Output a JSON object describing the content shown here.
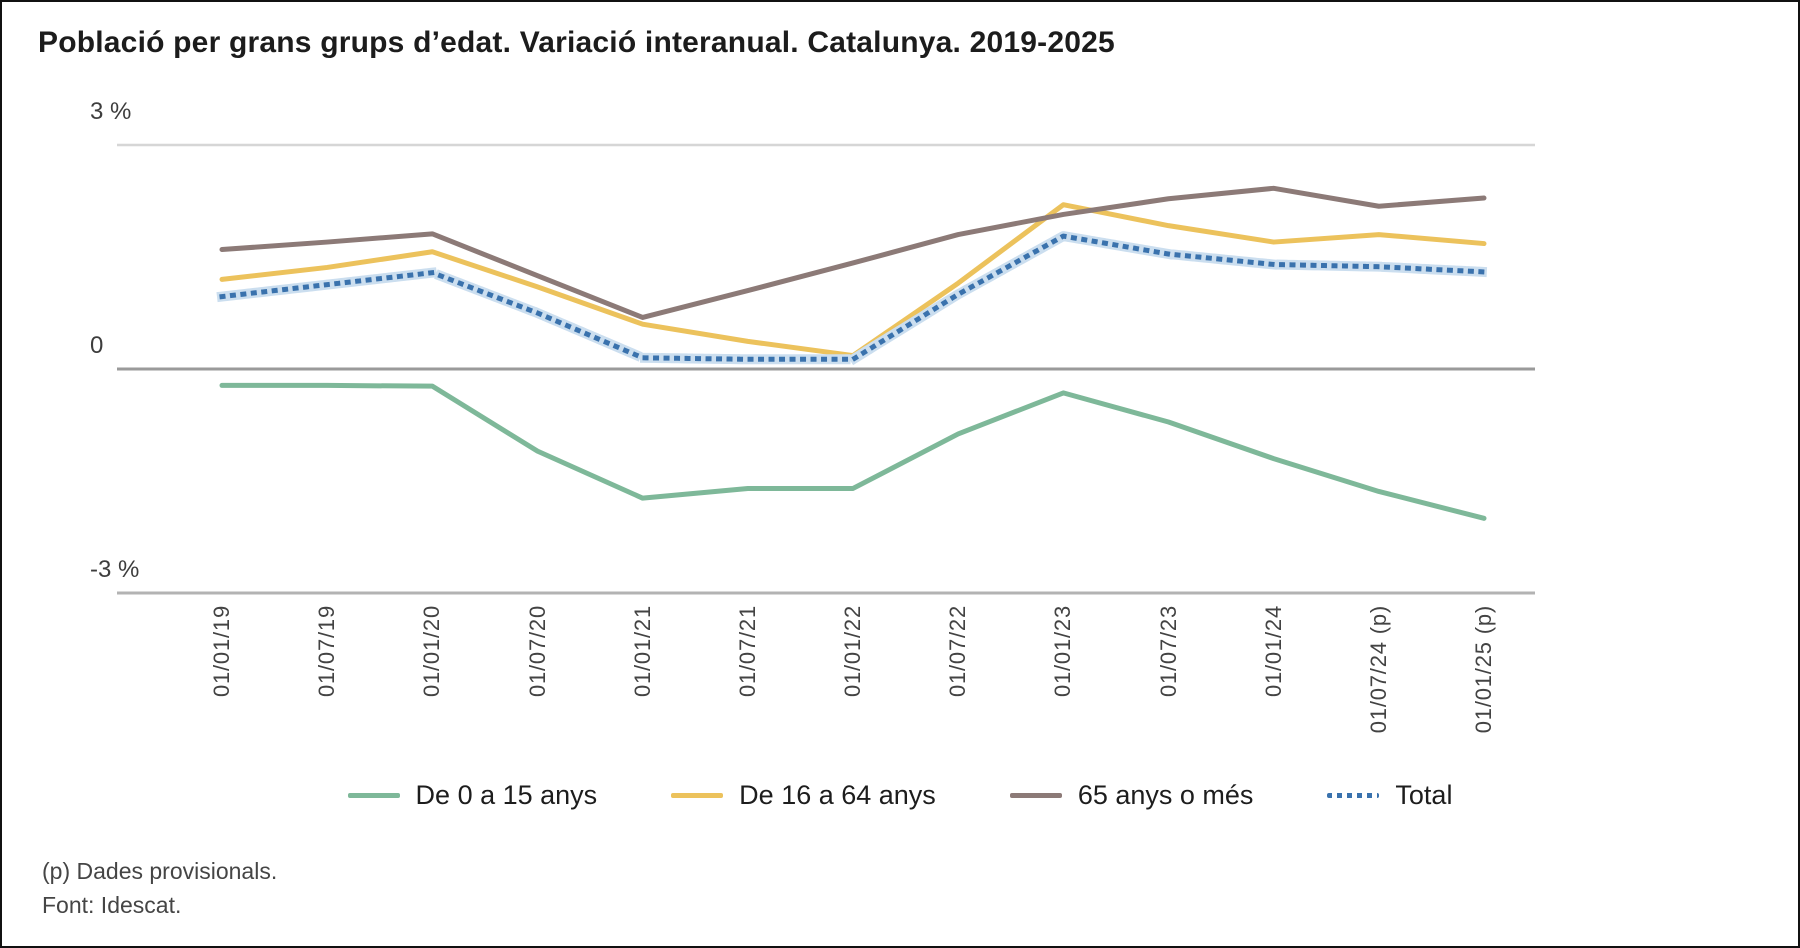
{
  "title": "Població per grans grups d’edat. Variació interanual. Catalunya. 2019-2025",
  "footnotes": {
    "provisional": "(p) Dades provisionals.",
    "source": "Font: Idescat."
  },
  "chart_data": {
    "type": "line",
    "title": "Població per grans grups d’edat. Variació interanual. Catalunya. 2019-2025",
    "xlabel": "",
    "ylabel": "%",
    "ylim": [
      -3,
      3
    ],
    "y_ticks": [
      "3 %",
      "0",
      "-3 %"
    ],
    "grid": "horizontal-only",
    "legend_position": "bottom",
    "categories": [
      "01/01/19",
      "01/07/19",
      "01/01/20",
      "01/07/20",
      "01/01/21",
      "01/07/21",
      "01/01/22",
      "01/07/22",
      "01/01/23",
      "01/07/23",
      "01/01/24",
      "01/07/24 (p)",
      "01/01/25 (p)"
    ],
    "series": [
      {
        "name": "De 0 a 15 anys",
        "color": "#7eb899",
        "style": "solid",
        "values": [
          -0.22,
          -0.22,
          -0.23,
          -1.1,
          -1.73,
          -1.6,
          -1.6,
          -0.87,
          -0.32,
          -0.71,
          -1.2,
          -1.64,
          -2.0
        ]
      },
      {
        "name": "De 16 a 64 anys",
        "color": "#ecc25c",
        "style": "solid",
        "values": [
          1.2,
          1.36,
          1.57,
          1.1,
          0.6,
          0.37,
          0.18,
          1.15,
          2.2,
          1.92,
          1.7,
          1.8,
          1.68
        ]
      },
      {
        "name": "65 anys o més",
        "color": "#8c7a77",
        "style": "solid",
        "values": [
          1.6,
          1.7,
          1.81,
          1.25,
          0.69,
          1.05,
          1.42,
          1.8,
          2.07,
          2.28,
          2.42,
          2.18,
          2.29
        ]
      },
      {
        "name": "Total",
        "color": "#3a72ad",
        "halo_color": "#cbdeef",
        "style": "dotted",
        "values": [
          0.97,
          1.13,
          1.29,
          0.75,
          0.15,
          0.13,
          0.13,
          1.0,
          1.78,
          1.54,
          1.4,
          1.37,
          1.3
        ]
      }
    ],
    "gridline_colors": {
      "top": "#d6d6d6",
      "zero": "#9a9a9a",
      "bottom": "#b3b3b3"
    }
  }
}
